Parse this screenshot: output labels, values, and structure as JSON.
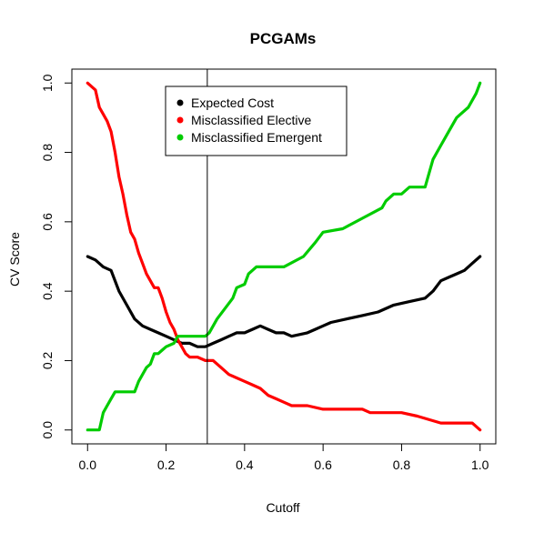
{
  "chart_data": {
    "type": "line",
    "title": "PCGAMs",
    "xlabel": "Cutoff",
    "ylabel": "CV Score",
    "xlim": [
      0,
      1
    ],
    "ylim": [
      0,
      1
    ],
    "x_ticks": [
      "0.0",
      "0.2",
      "0.4",
      "0.6",
      "0.8",
      "1.0"
    ],
    "y_ticks": [
      "0.0",
      "0.2",
      "0.4",
      "0.6",
      "0.8",
      "1.0"
    ],
    "grid": false,
    "legend_position": "top-center",
    "vertical_reference_line_x": 0.305,
    "series": [
      {
        "name": "Expected Cost",
        "color": "#000000",
        "points": [
          [
            0.0,
            0.5
          ],
          [
            0.02,
            0.49
          ],
          [
            0.04,
            0.47
          ],
          [
            0.06,
            0.46
          ],
          [
            0.08,
            0.4
          ],
          [
            0.1,
            0.36
          ],
          [
            0.12,
            0.32
          ],
          [
            0.14,
            0.3
          ],
          [
            0.16,
            0.29
          ],
          [
            0.18,
            0.28
          ],
          [
            0.2,
            0.27
          ],
          [
            0.22,
            0.26
          ],
          [
            0.24,
            0.25
          ],
          [
            0.26,
            0.25
          ],
          [
            0.28,
            0.24
          ],
          [
            0.3,
            0.24
          ],
          [
            0.32,
            0.25
          ],
          [
            0.34,
            0.26
          ],
          [
            0.36,
            0.27
          ],
          [
            0.38,
            0.28
          ],
          [
            0.4,
            0.28
          ],
          [
            0.42,
            0.29
          ],
          [
            0.44,
            0.3
          ],
          [
            0.46,
            0.29
          ],
          [
            0.48,
            0.28
          ],
          [
            0.5,
            0.28
          ],
          [
            0.52,
            0.27
          ],
          [
            0.56,
            0.28
          ],
          [
            0.58,
            0.29
          ],
          [
            0.6,
            0.3
          ],
          [
            0.62,
            0.31
          ],
          [
            0.66,
            0.32
          ],
          [
            0.7,
            0.33
          ],
          [
            0.74,
            0.34
          ],
          [
            0.78,
            0.36
          ],
          [
            0.82,
            0.37
          ],
          [
            0.86,
            0.38
          ],
          [
            0.88,
            0.4
          ],
          [
            0.9,
            0.43
          ],
          [
            0.92,
            0.44
          ],
          [
            0.94,
            0.45
          ],
          [
            0.96,
            0.46
          ],
          [
            0.98,
            0.48
          ],
          [
            1.0,
            0.5
          ]
        ]
      },
      {
        "name": "Misclassified Elective",
        "color": "#ff0000",
        "points": [
          [
            0.0,
            1.0
          ],
          [
            0.02,
            0.98
          ],
          [
            0.03,
            0.93
          ],
          [
            0.04,
            0.91
          ],
          [
            0.05,
            0.89
          ],
          [
            0.06,
            0.86
          ],
          [
            0.07,
            0.8
          ],
          [
            0.08,
            0.73
          ],
          [
            0.09,
            0.68
          ],
          [
            0.1,
            0.62
          ],
          [
            0.11,
            0.57
          ],
          [
            0.12,
            0.55
          ],
          [
            0.13,
            0.51
          ],
          [
            0.14,
            0.48
          ],
          [
            0.15,
            0.45
          ],
          [
            0.16,
            0.43
          ],
          [
            0.17,
            0.41
          ],
          [
            0.18,
            0.41
          ],
          [
            0.19,
            0.38
          ],
          [
            0.2,
            0.34
          ],
          [
            0.21,
            0.31
          ],
          [
            0.22,
            0.29
          ],
          [
            0.23,
            0.26
          ],
          [
            0.24,
            0.24
          ],
          [
            0.25,
            0.22
          ],
          [
            0.26,
            0.21
          ],
          [
            0.28,
            0.21
          ],
          [
            0.3,
            0.2
          ],
          [
            0.32,
            0.2
          ],
          [
            0.34,
            0.18
          ],
          [
            0.36,
            0.16
          ],
          [
            0.38,
            0.15
          ],
          [
            0.4,
            0.14
          ],
          [
            0.42,
            0.13
          ],
          [
            0.44,
            0.12
          ],
          [
            0.46,
            0.1
          ],
          [
            0.48,
            0.09
          ],
          [
            0.5,
            0.08
          ],
          [
            0.52,
            0.07
          ],
          [
            0.56,
            0.07
          ],
          [
            0.6,
            0.06
          ],
          [
            0.7,
            0.06
          ],
          [
            0.72,
            0.05
          ],
          [
            0.8,
            0.05
          ],
          [
            0.84,
            0.04
          ],
          [
            0.9,
            0.02
          ],
          [
            0.96,
            0.02
          ],
          [
            0.98,
            0.02
          ],
          [
            1.0,
            0.0
          ]
        ]
      },
      {
        "name": "Misclassified Emergent",
        "color": "#00cc00",
        "points": [
          [
            0.0,
            0.0
          ],
          [
            0.03,
            0.0
          ],
          [
            0.04,
            0.05
          ],
          [
            0.05,
            0.07
          ],
          [
            0.06,
            0.09
          ],
          [
            0.07,
            0.11
          ],
          [
            0.08,
            0.11
          ],
          [
            0.1,
            0.11
          ],
          [
            0.12,
            0.11
          ],
          [
            0.13,
            0.14
          ],
          [
            0.14,
            0.16
          ],
          [
            0.15,
            0.18
          ],
          [
            0.16,
            0.19
          ],
          [
            0.17,
            0.22
          ],
          [
            0.18,
            0.22
          ],
          [
            0.19,
            0.23
          ],
          [
            0.2,
            0.24
          ],
          [
            0.22,
            0.25
          ],
          [
            0.23,
            0.27
          ],
          [
            0.25,
            0.27
          ],
          [
            0.3,
            0.27
          ],
          [
            0.31,
            0.28
          ],
          [
            0.33,
            0.32
          ],
          [
            0.35,
            0.35
          ],
          [
            0.37,
            0.38
          ],
          [
            0.38,
            0.41
          ],
          [
            0.4,
            0.42
          ],
          [
            0.41,
            0.45
          ],
          [
            0.43,
            0.47
          ],
          [
            0.5,
            0.47
          ],
          [
            0.55,
            0.5
          ],
          [
            0.58,
            0.54
          ],
          [
            0.6,
            0.57
          ],
          [
            0.65,
            0.58
          ],
          [
            0.7,
            0.61
          ],
          [
            0.75,
            0.64
          ],
          [
            0.76,
            0.66
          ],
          [
            0.78,
            0.68
          ],
          [
            0.8,
            0.68
          ],
          [
            0.82,
            0.7
          ],
          [
            0.86,
            0.7
          ],
          [
            0.88,
            0.78
          ],
          [
            0.9,
            0.82
          ],
          [
            0.92,
            0.86
          ],
          [
            0.94,
            0.9
          ],
          [
            0.95,
            0.91
          ],
          [
            0.97,
            0.93
          ],
          [
            0.99,
            0.97
          ],
          [
            1.0,
            1.0
          ]
        ]
      }
    ]
  }
}
